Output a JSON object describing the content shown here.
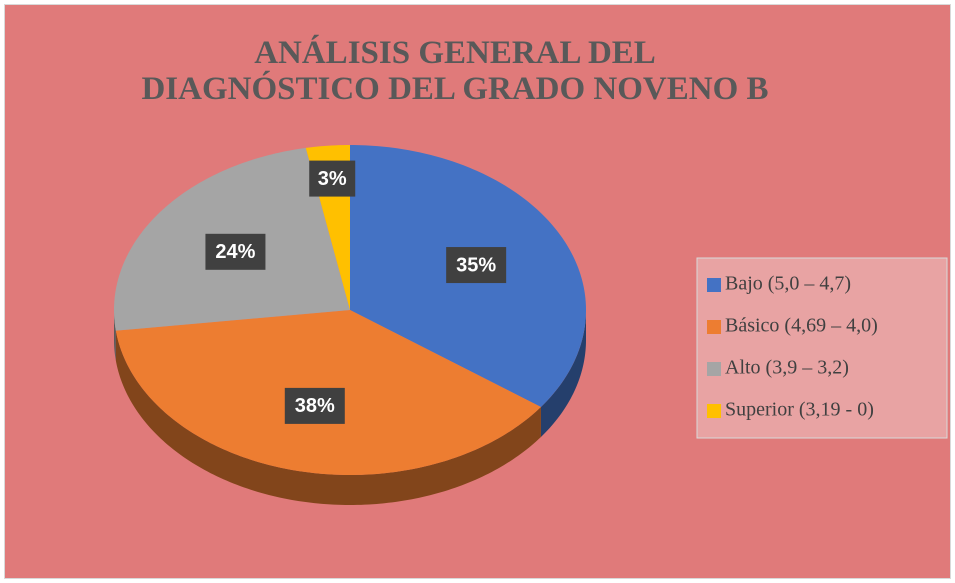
{
  "chart_data": {
    "type": "pie",
    "title": "ANÁLISIS GENERAL DEL DIAGNÓSTICO DEL GRADO NOVENO B",
    "categories": [
      "Bajo  (5,0 – 4,7)",
      "Básico  (4,69 – 4,0)",
      "Alto (3,9 – 3,2)",
      "Superior (3,19 - 0)"
    ],
    "values": [
      35,
      38,
      24,
      3
    ],
    "value_labels": [
      "35%",
      "38%",
      "24%",
      "3%"
    ],
    "colors": [
      "#4472c4",
      "#ed7d31",
      "#a5a5a5",
      "#ffc000"
    ],
    "legend": "right"
  }
}
